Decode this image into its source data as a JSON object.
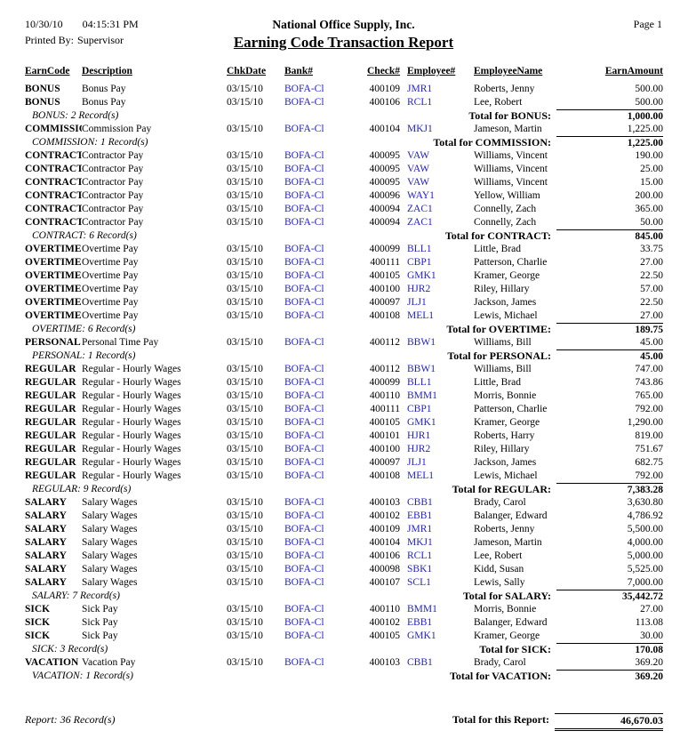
{
  "header": {
    "date": "10/30/10",
    "time": "04:15:31 PM",
    "company": "National Office Supply, Inc.",
    "page": "Page 1",
    "printed_by_label": "Printed By:",
    "printed_by_value": "Supervisor",
    "title": "Earning Code Transaction Report"
  },
  "columns": [
    "EarnCode",
    "Description",
    "ChkDate",
    "Bank#",
    "Check#",
    "Employee#",
    "EmployeeName",
    "EarnAmount"
  ],
  "colors": {
    "link_blue": "#2222CC",
    "text": "#000000"
  },
  "groups": [
    {
      "rows": [
        [
          "BONUS",
          "Bonus Pay",
          "03/15/10",
          "BOFA-Cl",
          "400109",
          "JMR1",
          "Roberts, Jenny",
          "500.00"
        ],
        [
          "BONUS",
          "Bonus Pay",
          "03/15/10",
          "BOFA-Cl",
          "400106",
          "RCL1",
          "Lee, Robert",
          "500.00"
        ]
      ],
      "count_label": "BONUS: 2 Record(s)",
      "total_label": "Total for BONUS:",
      "total": "1,000.00"
    },
    {
      "rows": [
        [
          "COMMISSION",
          "Commission Pay",
          "03/15/10",
          "BOFA-Cl",
          "400104",
          "MKJ1",
          "Jameson, Martin",
          "1,225.00"
        ]
      ],
      "count_label": "COMMISSION: 1 Record(s)",
      "total_label": "Total for COMMISSION:",
      "total": "1,225.00"
    },
    {
      "rows": [
        [
          "CONTRACT",
          "Contractor Pay",
          "03/15/10",
          "BOFA-Cl",
          "400095",
          "VAW",
          "Williams, Vincent",
          "190.00"
        ],
        [
          "CONTRACT",
          "Contractor Pay",
          "03/15/10",
          "BOFA-Cl",
          "400095",
          "VAW",
          "Williams, Vincent",
          "25.00"
        ],
        [
          "CONTRACT",
          "Contractor Pay",
          "03/15/10",
          "BOFA-Cl",
          "400095",
          "VAW",
          "Williams, Vincent",
          "15.00"
        ],
        [
          "CONTRACT",
          "Contractor Pay",
          "03/15/10",
          "BOFA-Cl",
          "400096",
          "WAY1",
          "Yellow, William",
          "200.00"
        ],
        [
          "CONTRACT",
          "Contractor Pay",
          "03/15/10",
          "BOFA-Cl",
          "400094",
          "ZAC1",
          "Connelly, Zach",
          "365.00"
        ],
        [
          "CONTRACT",
          "Contractor Pay",
          "03/15/10",
          "BOFA-Cl",
          "400094",
          "ZAC1",
          "Connelly, Zach",
          "50.00"
        ]
      ],
      "count_label": "CONTRACT: 6 Record(s)",
      "total_label": "Total for CONTRACT:",
      "total": "845.00"
    },
    {
      "rows": [
        [
          "OVERTIME",
          "Overtime Pay",
          "03/15/10",
          "BOFA-Cl",
          "400099",
          "BLL1",
          "Little, Brad",
          "33.75"
        ],
        [
          "OVERTIME",
          "Overtime Pay",
          "03/15/10",
          "BOFA-Cl",
          "400111",
          "CBP1",
          "Patterson, Charlie",
          "27.00"
        ],
        [
          "OVERTIME",
          "Overtime Pay",
          "03/15/10",
          "BOFA-Cl",
          "400105",
          "GMK1",
          "Kramer, George",
          "22.50"
        ],
        [
          "OVERTIME",
          "Overtime Pay",
          "03/15/10",
          "BOFA-Cl",
          "400100",
          "HJR2",
          "Riley, Hillary",
          "57.00"
        ],
        [
          "OVERTIME",
          "Overtime Pay",
          "03/15/10",
          "BOFA-Cl",
          "400097",
          "JLJ1",
          "Jackson, James",
          "22.50"
        ],
        [
          "OVERTIME",
          "Overtime Pay",
          "03/15/10",
          "BOFA-Cl",
          "400108",
          "MEL1",
          "Lewis, Michael",
          "27.00"
        ]
      ],
      "count_label": "OVERTIME: 6 Record(s)",
      "total_label": "Total for OVERTIME:",
      "total": "189.75"
    },
    {
      "rows": [
        [
          "PERSONAL",
          "Personal Time Pay",
          "03/15/10",
          "BOFA-Cl",
          "400112",
          "BBW1",
          "Williams, Bill",
          "45.00"
        ]
      ],
      "count_label": "PERSONAL: 1 Record(s)",
      "total_label": "Total for PERSONAL:",
      "total": "45.00"
    },
    {
      "rows": [
        [
          "REGULAR",
          "Regular - Hourly Wages",
          "03/15/10",
          "BOFA-Cl",
          "400112",
          "BBW1",
          "Williams, Bill",
          "747.00"
        ],
        [
          "REGULAR",
          "Regular - Hourly Wages",
          "03/15/10",
          "BOFA-Cl",
          "400099",
          "BLL1",
          "Little, Brad",
          "743.86"
        ],
        [
          "REGULAR",
          "Regular - Hourly Wages",
          "03/15/10",
          "BOFA-Cl",
          "400110",
          "BMM1",
          "Morris, Bonnie",
          "765.00"
        ],
        [
          "REGULAR",
          "Regular - Hourly Wages",
          "03/15/10",
          "BOFA-Cl",
          "400111",
          "CBP1",
          "Patterson, Charlie",
          "792.00"
        ],
        [
          "REGULAR",
          "Regular - Hourly Wages",
          "03/15/10",
          "BOFA-Cl",
          "400105",
          "GMK1",
          "Kramer, George",
          "1,290.00"
        ],
        [
          "REGULAR",
          "Regular - Hourly Wages",
          "03/15/10",
          "BOFA-Cl",
          "400101",
          "HJR1",
          "Roberts, Harry",
          "819.00"
        ],
        [
          "REGULAR",
          "Regular - Hourly Wages",
          "03/15/10",
          "BOFA-Cl",
          "400100",
          "HJR2",
          "Riley, Hillary",
          "751.67"
        ],
        [
          "REGULAR",
          "Regular - Hourly Wages",
          "03/15/10",
          "BOFA-Cl",
          "400097",
          "JLJ1",
          "Jackson, James",
          "682.75"
        ],
        [
          "REGULAR",
          "Regular - Hourly Wages",
          "03/15/10",
          "BOFA-Cl",
          "400108",
          "MEL1",
          "Lewis, Michael",
          "792.00"
        ]
      ],
      "count_label": "REGULAR: 9 Record(s)",
      "total_label": "Total for REGULAR:",
      "total": "7,383.28"
    },
    {
      "rows": [
        [
          "SALARY",
          "Salary Wages",
          "03/15/10",
          "BOFA-Cl",
          "400103",
          "CBB1",
          "Brady, Carol",
          "3,630.80"
        ],
        [
          "SALARY",
          "Salary Wages",
          "03/15/10",
          "BOFA-Cl",
          "400102",
          "EBB1",
          "Balanger, Edward",
          "4,786.92"
        ],
        [
          "SALARY",
          "Salary Wages",
          "03/15/10",
          "BOFA-Cl",
          "400109",
          "JMR1",
          "Roberts, Jenny",
          "5,500.00"
        ],
        [
          "SALARY",
          "Salary Wages",
          "03/15/10",
          "BOFA-Cl",
          "400104",
          "MKJ1",
          "Jameson, Martin",
          "4,000.00"
        ],
        [
          "SALARY",
          "Salary Wages",
          "03/15/10",
          "BOFA-Cl",
          "400106",
          "RCL1",
          "Lee, Robert",
          "5,000.00"
        ],
        [
          "SALARY",
          "Salary Wages",
          "03/15/10",
          "BOFA-Cl",
          "400098",
          "SBK1",
          "Kidd, Susan",
          "5,525.00"
        ],
        [
          "SALARY",
          "Salary Wages",
          "03/15/10",
          "BOFA-Cl",
          "400107",
          "SCL1",
          "Lewis, Sally",
          "7,000.00"
        ]
      ],
      "count_label": "SALARY: 7 Record(s)",
      "total_label": "Total for SALARY:",
      "total": "35,442.72"
    },
    {
      "rows": [
        [
          "SICK",
          "Sick Pay",
          "03/15/10",
          "BOFA-Cl",
          "400110",
          "BMM1",
          "Morris, Bonnie",
          "27.00"
        ],
        [
          "SICK",
          "Sick Pay",
          "03/15/10",
          "BOFA-Cl",
          "400102",
          "EBB1",
          "Balanger, Edward",
          "113.08"
        ],
        [
          "SICK",
          "Sick Pay",
          "03/15/10",
          "BOFA-Cl",
          "400105",
          "GMK1",
          "Kramer, George",
          "30.00"
        ]
      ],
      "count_label": "SICK: 3 Record(s)",
      "total_label": "Total for SICK:",
      "total": "170.08"
    },
    {
      "rows": [
        [
          "VACATION",
          "Vacation Pay",
          "03/15/10",
          "BOFA-Cl",
          "400103",
          "CBB1",
          "Brady, Carol",
          "369.20"
        ]
      ],
      "count_label": "VACATION: 1 Record(s)",
      "total_label": "Total for VACATION:",
      "total": "369.20"
    }
  ],
  "footer": {
    "count_label": "Report: 36 Record(s)",
    "total_label": "Total for this Report:",
    "total": "46,670.03"
  }
}
